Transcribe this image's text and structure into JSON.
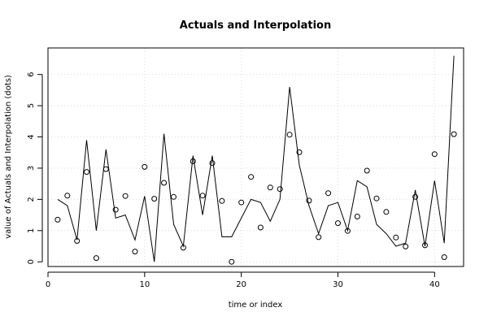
{
  "chart_data": {
    "type": "line",
    "title": "Actuals and Interpolation",
    "xlabel": "time or index",
    "ylabel": "value of Actuals and Interpolation (dots)",
    "xlim": [
      0,
      43
    ],
    "ylim": [
      -0.15,
      6.85
    ],
    "x_ticks": [
      0,
      10,
      20,
      30,
      40
    ],
    "y_ticks": [
      0,
      1,
      2,
      3,
      4,
      5,
      6
    ],
    "grid": true,
    "series": [
      {
        "style": "line",
        "x": [
          1,
          2,
          3,
          4,
          5,
          6,
          7,
          8,
          9,
          10,
          11,
          12,
          13,
          14,
          15,
          16,
          17,
          18,
          19,
          20,
          21,
          22,
          23,
          24,
          25,
          26,
          27,
          28,
          29,
          30,
          31,
          32,
          33,
          34,
          35,
          36,
          37,
          38,
          39,
          40,
          41,
          42
        ],
        "values": [
          2.0,
          1.8,
          0.7,
          3.9,
          1.0,
          3.6,
          1.4,
          1.5,
          0.7,
          2.1,
          0.0,
          4.1,
          1.2,
          0.5,
          3.4,
          1.5,
          3.4,
          0.8,
          0.8,
          1.4,
          2.0,
          1.9,
          1.3,
          2.0,
          5.6,
          3.1,
          1.8,
          0.9,
          1.8,
          1.9,
          1.0,
          2.6,
          2.4,
          1.2,
          0.9,
          0.5,
          0.6,
          2.3,
          0.5,
          2.6,
          0.6,
          6.6
        ]
      },
      {
        "style": "points",
        "x": [
          1,
          2,
          3,
          4,
          5,
          6,
          7,
          8,
          9,
          10,
          11,
          12,
          13,
          14,
          15,
          16,
          17,
          18,
          19,
          20,
          21,
          22,
          23,
          24,
          25,
          26,
          27,
          28,
          29,
          30,
          31,
          32,
          33,
          34,
          35,
          36,
          37,
          38,
          39,
          40,
          41,
          42
        ],
        "values": [
          1.35,
          2.12,
          0.67,
          2.88,
          0.12,
          2.97,
          1.67,
          2.11,
          0.33,
          3.04,
          2.02,
          2.53,
          2.08,
          0.45,
          3.22,
          2.12,
          3.16,
          1.95,
          0.0,
          1.9,
          2.72,
          1.1,
          2.38,
          2.33,
          4.07,
          3.51,
          1.96,
          0.79,
          2.2,
          1.24,
          0.99,
          1.45,
          2.92,
          2.03,
          1.6,
          0.78,
          0.49,
          2.08,
          0.53,
          3.45,
          0.15,
          4.09
        ]
      }
    ]
  }
}
